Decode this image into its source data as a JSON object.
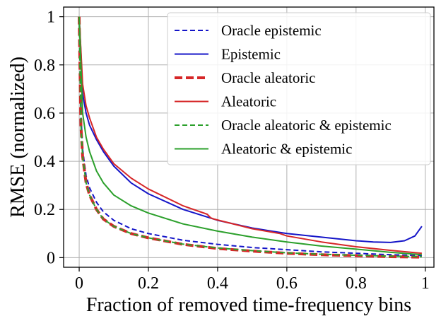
{
  "chart_data": {
    "type": "line",
    "xlabel": "Fraction of removed time-frequency bins",
    "ylabel": "RMSE (normalized)",
    "xlim": [
      -0.045,
      1.025
    ],
    "ylim": [
      -0.04,
      1.04
    ],
    "xticks": [
      0,
      0.2,
      0.4,
      0.6,
      0.8,
      1
    ],
    "xtick_labels": [
      "0",
      "0.2",
      "0.4",
      "0.6",
      "0.8",
      "1"
    ],
    "yticks": [
      0,
      0.2,
      0.4,
      0.6,
      0.8,
      1
    ],
    "ytick_labels": [
      "0",
      "0.2",
      "0.4",
      "0.6",
      "0.8",
      "1"
    ],
    "grid": true,
    "legend_position": "top-right",
    "series": [
      {
        "name": "Oracle epistemic",
        "color": "#1515c8",
        "dash": "dashed",
        "width": "thin",
        "x": [
          0,
          0.005,
          0.01,
          0.02,
          0.03,
          0.05,
          0.07,
          0.1,
          0.15,
          0.2,
          0.3,
          0.4,
          0.5,
          0.6,
          0.7,
          0.8,
          0.9,
          0.99
        ],
        "y": [
          1.0,
          0.6,
          0.45,
          0.34,
          0.29,
          0.23,
          0.19,
          0.155,
          0.12,
          0.1,
          0.072,
          0.055,
          0.042,
          0.033,
          0.024,
          0.018,
          0.012,
          0.008
        ]
      },
      {
        "name": "Epistemic",
        "color": "#1515c8",
        "dash": "solid",
        "width": "normal",
        "x": [
          0,
          0.005,
          0.01,
          0.02,
          0.03,
          0.05,
          0.07,
          0.1,
          0.15,
          0.2,
          0.3,
          0.4,
          0.5,
          0.6,
          0.7,
          0.8,
          0.85,
          0.9,
          0.94,
          0.97,
          0.99
        ],
        "y": [
          1.0,
          0.85,
          0.68,
          0.6,
          0.55,
          0.49,
          0.44,
          0.38,
          0.31,
          0.265,
          0.2,
          0.155,
          0.123,
          0.1,
          0.085,
          0.07,
          0.065,
          0.063,
          0.07,
          0.09,
          0.13
        ]
      },
      {
        "name": "Oracle aleatoric",
        "color": "#d62728",
        "dash": "dashed",
        "width": "thick",
        "x": [
          0,
          0.005,
          0.01,
          0.02,
          0.03,
          0.05,
          0.07,
          0.1,
          0.15,
          0.2,
          0.3,
          0.4,
          0.5,
          0.6,
          0.7,
          0.8,
          0.9,
          0.99
        ],
        "y": [
          1.0,
          0.55,
          0.42,
          0.31,
          0.26,
          0.2,
          0.16,
          0.13,
          0.1,
          0.082,
          0.055,
          0.038,
          0.027,
          0.018,
          0.012,
          0.008,
          0.004,
          0.002
        ]
      },
      {
        "name": "Aleatoric",
        "color": "#d62728",
        "dash": "solid",
        "width": "normal",
        "x": [
          0,
          0.005,
          0.01,
          0.02,
          0.03,
          0.05,
          0.07,
          0.1,
          0.15,
          0.2,
          0.3,
          0.37,
          0.38,
          0.39,
          0.5,
          0.58,
          0.6,
          0.7,
          0.8,
          0.9,
          0.99
        ],
        "y": [
          1.0,
          0.86,
          0.72,
          0.63,
          0.58,
          0.5,
          0.45,
          0.39,
          0.33,
          0.285,
          0.215,
          0.18,
          0.165,
          0.16,
          0.12,
          0.1,
          0.09,
          0.065,
          0.045,
          0.03,
          0.018
        ]
      },
      {
        "name": "Oracle aleatoric & epistemic",
        "color": "#2ca02c",
        "dash": "dashed",
        "width": "thin",
        "x": [
          0,
          0.005,
          0.01,
          0.02,
          0.03,
          0.05,
          0.07,
          0.1,
          0.15,
          0.2,
          0.3,
          0.4,
          0.5,
          0.6,
          0.7,
          0.8,
          0.9,
          0.99
        ],
        "y": [
          1.0,
          0.55,
          0.42,
          0.31,
          0.26,
          0.2,
          0.16,
          0.13,
          0.1,
          0.082,
          0.056,
          0.04,
          0.029,
          0.02,
          0.014,
          0.01,
          0.006,
          0.004
        ]
      },
      {
        "name": "Aleatoric & epistemic",
        "color": "#2ca02c",
        "dash": "solid",
        "width": "normal",
        "x": [
          0,
          0.005,
          0.01,
          0.02,
          0.03,
          0.05,
          0.07,
          0.1,
          0.15,
          0.2,
          0.3,
          0.4,
          0.5,
          0.6,
          0.7,
          0.8,
          0.9,
          0.99
        ],
        "y": [
          1.0,
          0.8,
          0.6,
          0.5,
          0.44,
          0.36,
          0.31,
          0.26,
          0.215,
          0.185,
          0.14,
          0.11,
          0.085,
          0.065,
          0.048,
          0.035,
          0.022,
          0.012
        ]
      }
    ]
  }
}
